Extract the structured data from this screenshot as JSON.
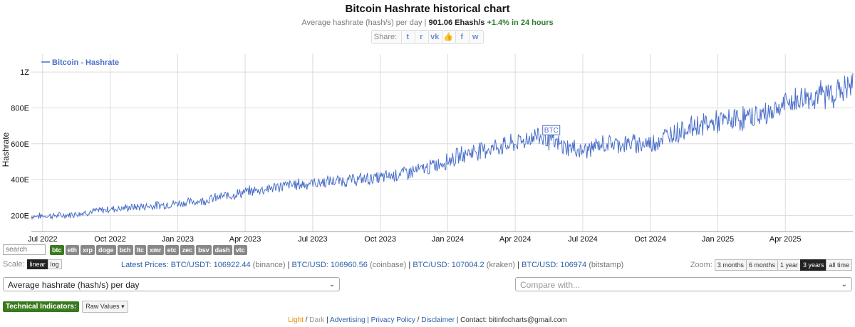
{
  "header": {
    "title": "Bitcoin Hashrate historical chart",
    "subtitle_prefix": "Average hashrate (hash/s) per day |",
    "current_value": "901.06 Ehash/s",
    "change": "+1.4% in 24 hours",
    "share_label": "Share:",
    "share_icons": [
      "twitter-icon",
      "reddit-icon",
      "vk-icon",
      "like-icon",
      "facebook-icon",
      "weibo-icon"
    ]
  },
  "chart_data": {
    "type": "line",
    "legend": "Bitcoin - Hashrate",
    "legend_placement": "top-left",
    "ylabel": "Hashrate",
    "y_ticks": [
      "200E",
      "400E",
      "600E",
      "800E",
      "1Z"
    ],
    "y_tick_values": [
      200,
      400,
      600,
      800,
      1000
    ],
    "ylim": [
      110,
      1100
    ],
    "x_ticks": [
      "Jul 2022",
      "Oct 2022",
      "Jan 2023",
      "Apr 2023",
      "Jul 2023",
      "Oct 2023",
      "Jan 2024",
      "Apr 2024",
      "Jul 2024",
      "Oct 2024",
      "Jan 2025",
      "Apr 2025"
    ],
    "x_tick_months": [
      0,
      3,
      6,
      9,
      12,
      15,
      18,
      21,
      24,
      27,
      30,
      33
    ],
    "xlim_months": [
      -0.5,
      36.0
    ],
    "grid": true,
    "series_color": "#4a6fc9",
    "annotation": "BTC",
    "annotation_month": 22.6,
    "trend": {
      "months": [
        -0.5,
        1,
        3,
        5,
        7,
        9,
        11,
        13,
        15,
        17,
        19,
        21,
        22,
        23,
        24,
        25,
        27,
        28,
        29,
        31,
        32,
        33,
        34,
        35,
        36
      ],
      "values": [
        195,
        200,
        235,
        255,
        280,
        330,
        370,
        390,
        410,
        460,
        555,
        600,
        650,
        590,
        560,
        600,
        600,
        660,
        700,
        740,
        760,
        820,
        860,
        880,
        920
      ]
    },
    "noise_amplitude": 0.08
  },
  "controls": {
    "search_placeholder": "search",
    "coins": [
      "btc",
      "eth",
      "xrp",
      "doge",
      "bch",
      "ltc",
      "xmr",
      "etc",
      "zec",
      "bsv",
      "dash",
      "vtc"
    ],
    "active_coin": "btc",
    "scale_label": "Scale:",
    "scale_options": [
      "linear",
      "log"
    ],
    "active_scale": "linear",
    "prices_label": "Latest Prices:",
    "prices": [
      {
        "pair": "BTC/USDT:",
        "value": "106922.44",
        "exchange": "(binance)"
      },
      {
        "pair": "BTC/USD:",
        "value": "106960.56",
        "exchange": "(coinbase)"
      },
      {
        "pair": "BTC/USD:",
        "value": "107004.2",
        "exchange": "(kraken)"
      },
      {
        "pair": "BTC/USD:",
        "value": "106974",
        "exchange": "(bitstamp)"
      }
    ],
    "zoom_label": "Zoom:",
    "zoom_options": [
      "3 months",
      "6 months",
      "1 year",
      "3 years",
      "all time"
    ],
    "active_zoom": "3 years",
    "metric_select": "Average hashrate (hash/s) per day",
    "compare_placeholder": "Compare with...",
    "technical_indicators": "Technical Indicators:",
    "raw_values": "Raw Values"
  },
  "footer": {
    "light": "Light",
    "dark": "Dark",
    "advertising": "Advertising",
    "privacy": "Privacy Policy",
    "disclaimer": "Disclaimer",
    "contact": "Contact: bitinfocharts@gmail.com"
  }
}
